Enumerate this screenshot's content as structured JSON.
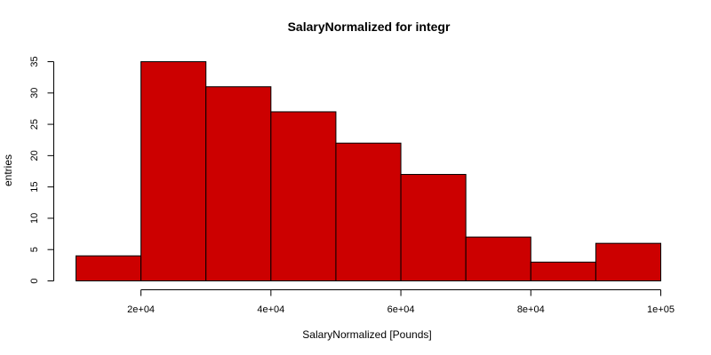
{
  "chart_data": {
    "type": "bar",
    "title": "SalaryNormalized for integr",
    "xlabel": "SalaryNormalized [Pounds]",
    "ylabel": "entries",
    "bins": [
      {
        "from": 10000,
        "to": 20000,
        "count": 4
      },
      {
        "from": 20000,
        "to": 30000,
        "count": 35
      },
      {
        "from": 30000,
        "to": 40000,
        "count": 31
      },
      {
        "from": 40000,
        "to": 50000,
        "count": 27
      },
      {
        "from": 50000,
        "to": 60000,
        "count": 22
      },
      {
        "from": 60000,
        "to": 70000,
        "count": 17
      },
      {
        "from": 70000,
        "to": 80000,
        "count": 7
      },
      {
        "from": 80000,
        "to": 90000,
        "count": 3
      },
      {
        "from": 90000,
        "to": 100000,
        "count": 6
      }
    ],
    "xlim": [
      10000,
      100000
    ],
    "ylim": [
      0,
      35
    ],
    "x_ticks": [
      {
        "value": 20000,
        "label": "2e+04"
      },
      {
        "value": 40000,
        "label": "4e+04"
      },
      {
        "value": 60000,
        "label": "6e+04"
      },
      {
        "value": 80000,
        "label": "8e+04"
      },
      {
        "value": 100000,
        "label": "1e+05"
      }
    ],
    "y_ticks": [
      {
        "value": 0,
        "label": "0"
      },
      {
        "value": 5,
        "label": "5"
      },
      {
        "value": 10,
        "label": "10"
      },
      {
        "value": 15,
        "label": "15"
      },
      {
        "value": 20,
        "label": "20"
      },
      {
        "value": 25,
        "label": "25"
      },
      {
        "value": 30,
        "label": "30"
      },
      {
        "value": 35,
        "label": "35"
      }
    ],
    "bar_color": "#cc0000",
    "grid": false
  }
}
